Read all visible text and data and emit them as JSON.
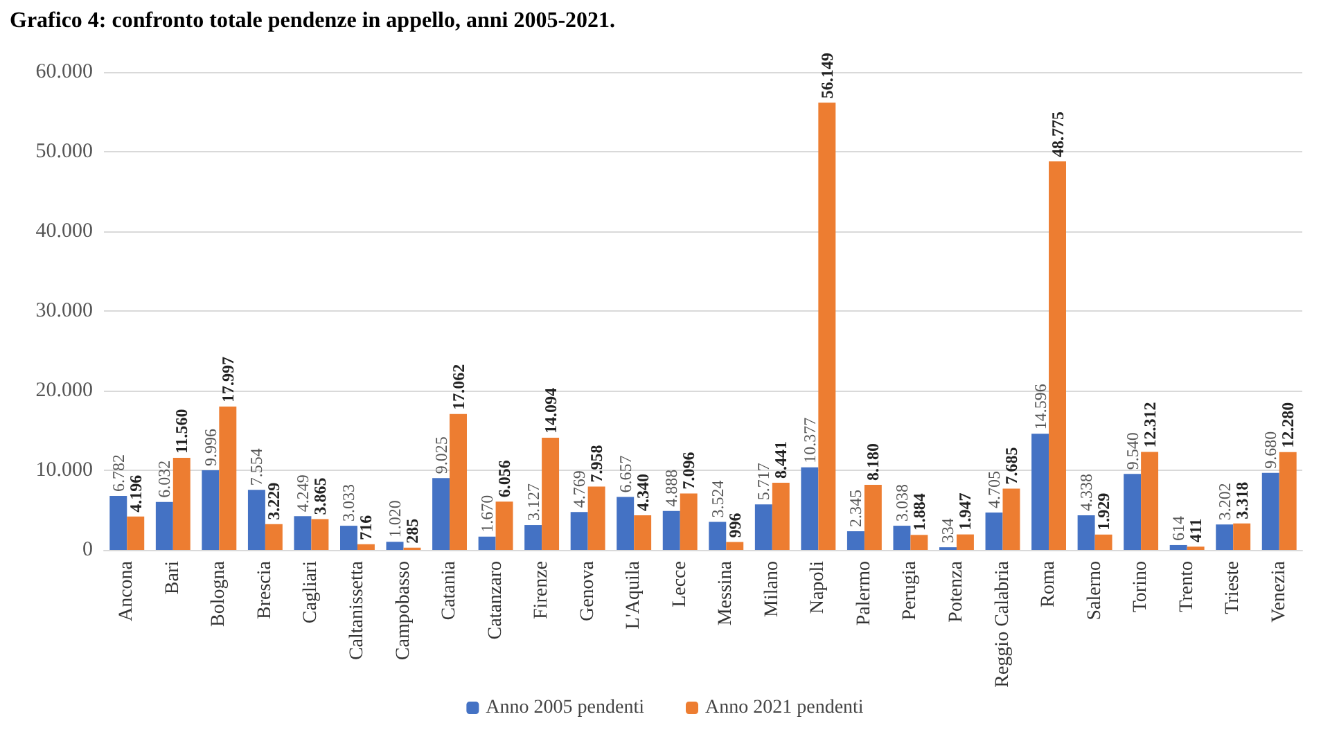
{
  "chart_data": {
    "type": "bar",
    "title": "Grafico 4: confronto totale pendenze in appello, anni 2005-2021.",
    "categories": [
      "Ancona",
      "Bari",
      "Bologna",
      "Brescia",
      "Cagliari",
      "Caltanissetta",
      "Campobasso",
      "Catania",
      "Catanzaro",
      "Firenze",
      "Genova",
      "L'Aquila",
      "Lecce",
      "Messina",
      "Milano",
      "Napoli",
      "Palermo",
      "Perugia",
      "Potenza",
      "Reggio Calabria",
      "Roma",
      "Salerno",
      "Torino",
      "Trento",
      "Trieste",
      "Venezia"
    ],
    "series": [
      {
        "name": "Anno 2005 pendenti",
        "color": "#4472c4",
        "values": [
          6782,
          6032,
          9996,
          7554,
          4249,
          3033,
          1020,
          9025,
          1670,
          3127,
          4769,
          6657,
          4888,
          3524,
          5717,
          10377,
          2345,
          3038,
          334,
          4705,
          14596,
          4338,
          9540,
          614,
          3202,
          9680
        ],
        "value_labels": [
          "6.782",
          "6.032",
          "9.996",
          "7.554",
          "4.249",
          "3.033",
          "1.020",
          "9.025",
          "1.670",
          "3.127",
          "4.769",
          "6.657",
          "4.888",
          "3.524",
          "5.717",
          "10.377",
          "2.345",
          "3.038",
          "334",
          "4.705",
          "14.596",
          "4.338",
          "9.540",
          "614",
          "3.202",
          "9.680"
        ]
      },
      {
        "name": "Anno 2021 pendenti",
        "color": "#ed7d31",
        "values": [
          4196,
          11560,
          17997,
          3229,
          3865,
          716,
          285,
          17062,
          6056,
          14094,
          7958,
          4340,
          7096,
          996,
          8441,
          56149,
          8180,
          1884,
          1947,
          7685,
          48775,
          1929,
          12312,
          411,
          3318,
          12280
        ],
        "value_labels": [
          "4.196",
          "11.560",
          "17.997",
          "3.229",
          "3.865",
          "716",
          "285",
          "17.062",
          "6.056",
          "14.094",
          "7.958",
          "4.340",
          "7.096",
          "996",
          "8.441",
          "56.149",
          "8.180",
          "1.884",
          "1.947",
          "7.685",
          "48.775",
          "1.929",
          "12.312",
          "411",
          "3.318",
          "12.280"
        ]
      }
    ],
    "ylim": [
      0,
      60000
    ],
    "yticks": [
      {
        "value": 0,
        "label": "0"
      },
      {
        "value": 10000,
        "label": "10.000"
      },
      {
        "value": 20000,
        "label": "20.000"
      },
      {
        "value": 30000,
        "label": "30.000"
      },
      {
        "value": 40000,
        "label": "40.000"
      },
      {
        "value": 50000,
        "label": "50.000"
      },
      {
        "value": 60000,
        "label": "60.000"
      }
    ],
    "grid": "y",
    "legend": "bottom"
  }
}
